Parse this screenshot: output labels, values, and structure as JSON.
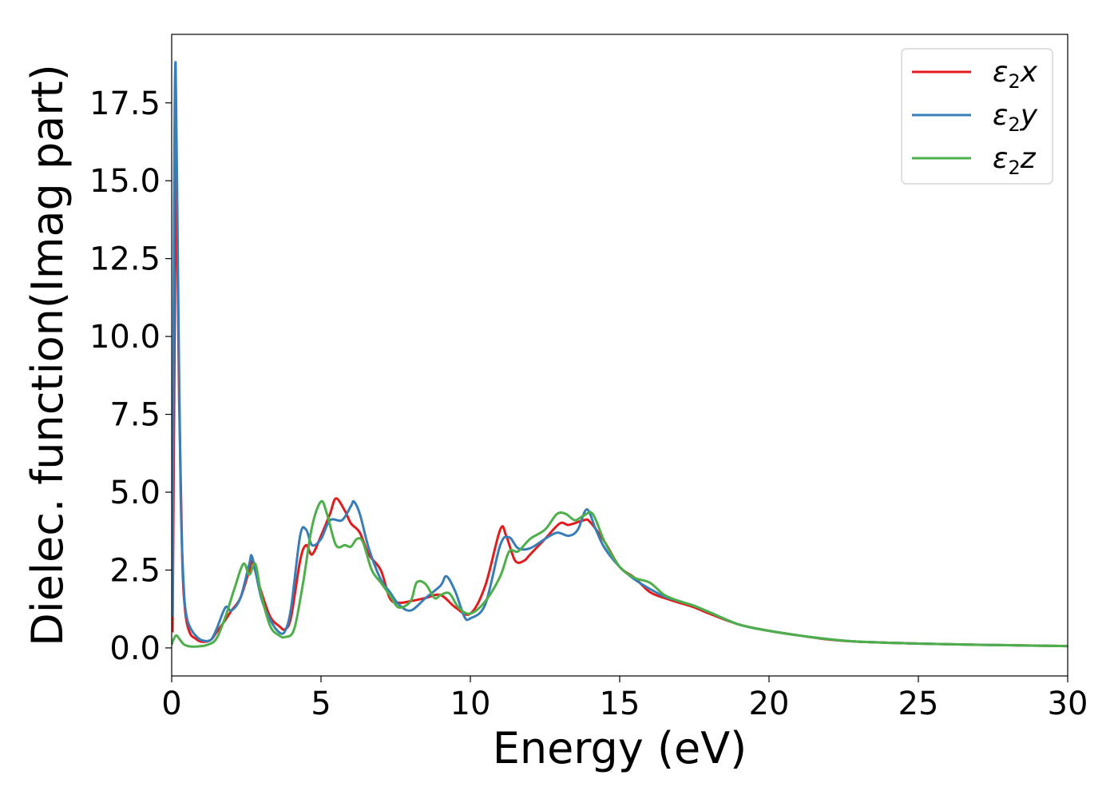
{
  "chart_data": {
    "type": "line",
    "xlabel": "Energy (eV)",
    "ylabel": "Dielec. function(Imag part)",
    "xlim": [
      0,
      30
    ],
    "ylim": [
      -0.9,
      19.7
    ],
    "xticks": [
      0,
      5,
      10,
      15,
      20,
      25,
      30
    ],
    "xtick_labels": [
      "0",
      "5",
      "10",
      "15",
      "20",
      "25",
      "30"
    ],
    "yticks": [
      0.0,
      2.5,
      5.0,
      7.5,
      10.0,
      12.5,
      15.0,
      17.5
    ],
    "ytick_labels": [
      "0.0",
      "2.5",
      "5.0",
      "7.5",
      "10.0",
      "12.5",
      "15.0",
      "17.5"
    ],
    "grid": false,
    "legend_position": "top-right",
    "series": [
      {
        "name": "ε₂x",
        "label_base": "ε",
        "label_sub": "2",
        "label_tail": "x",
        "color": "#e41a1c",
        "x": [
          0.03,
          0.1,
          0.15,
          0.25,
          0.35,
          0.45,
          0.6,
          0.8,
          1.0,
          1.3,
          1.5,
          1.8,
          2.0,
          2.3,
          2.6,
          2.7,
          3.0,
          3.3,
          3.6,
          3.8,
          4.0,
          4.3,
          4.5,
          4.7,
          5.0,
          5.3,
          5.5,
          5.8,
          6.0,
          6.3,
          6.6,
          7.0,
          7.3,
          7.6,
          8.0,
          8.5,
          9.0,
          9.5,
          10.0,
          10.5,
          11.0,
          11.2,
          11.5,
          11.8,
          12.0,
          12.5,
          13.0,
          13.3,
          13.8,
          14.0,
          14.5,
          15.0,
          15.5,
          16.0,
          16.5,
          17.0,
          17.5,
          18.0,
          19.0,
          20.0,
          21.0,
          22.0,
          23.0,
          25.0,
          27.0,
          30.0
        ],
        "y": [
          0.5,
          10.0,
          15.6,
          8.0,
          3.0,
          1.2,
          0.5,
          0.3,
          0.2,
          0.25,
          0.5,
          0.9,
          1.2,
          1.6,
          2.5,
          2.75,
          1.8,
          1.0,
          0.7,
          0.6,
          1.0,
          2.8,
          3.3,
          3.0,
          3.6,
          4.3,
          4.8,
          4.4,
          4.0,
          3.7,
          3.0,
          2.5,
          1.6,
          1.45,
          1.5,
          1.6,
          1.7,
          1.3,
          1.1,
          2.0,
          3.8,
          3.6,
          2.8,
          2.8,
          3.0,
          3.5,
          4.0,
          3.95,
          4.1,
          4.05,
          3.4,
          2.6,
          2.25,
          1.8,
          1.6,
          1.45,
          1.3,
          1.1,
          0.75,
          0.55,
          0.4,
          0.27,
          0.2,
          0.14,
          0.1,
          0.06
        ]
      },
      {
        "name": "ε₂y",
        "label_base": "ε",
        "label_sub": "2",
        "label_tail": "y",
        "color": "#377eb8",
        "x": [
          0.03,
          0.08,
          0.13,
          0.2,
          0.3,
          0.4,
          0.5,
          0.65,
          0.8,
          1.0,
          1.3,
          1.5,
          1.8,
          2.0,
          2.3,
          2.6,
          2.7,
          3.0,
          3.3,
          3.6,
          3.8,
          4.0,
          4.3,
          4.5,
          4.7,
          5.0,
          5.3,
          5.7,
          6.0,
          6.1,
          6.3,
          6.6,
          7.0,
          7.3,
          7.6,
          8.0,
          8.5,
          9.0,
          9.2,
          9.5,
          9.8,
          10.0,
          10.5,
          11.0,
          11.3,
          11.6,
          12.0,
          12.5,
          12.9,
          13.3,
          13.6,
          13.9,
          14.2,
          14.5,
          15.0,
          15.5,
          16.0,
          16.5,
          17.0,
          17.5,
          18.0,
          19.0,
          20.0,
          21.0,
          22.0,
          23.0,
          25.0,
          27.0,
          30.0
        ],
        "y": [
          1.0,
          14.0,
          18.8,
          13.0,
          5.0,
          2.0,
          1.0,
          0.6,
          0.4,
          0.25,
          0.25,
          0.6,
          1.3,
          1.2,
          1.6,
          2.7,
          2.9,
          1.6,
          0.9,
          0.5,
          0.55,
          1.3,
          3.6,
          3.8,
          3.3,
          3.5,
          4.1,
          4.1,
          4.55,
          4.7,
          4.3,
          3.2,
          2.2,
          1.8,
          1.4,
          1.2,
          1.6,
          2.0,
          2.3,
          1.8,
          1.0,
          0.95,
          1.4,
          3.3,
          3.55,
          3.2,
          3.2,
          3.5,
          3.7,
          3.6,
          3.8,
          4.45,
          3.8,
          3.2,
          2.6,
          2.2,
          1.9,
          1.65,
          1.5,
          1.35,
          1.15,
          0.75,
          0.55,
          0.4,
          0.28,
          0.2,
          0.14,
          0.1,
          0.06
        ]
      },
      {
        "name": "ε₂z",
        "label_base": "ε",
        "label_sub": "2",
        "label_tail": "z",
        "color": "#4daf4a",
        "x": [
          0.0,
          0.05,
          0.15,
          0.25,
          0.4,
          0.6,
          0.9,
          1.2,
          1.5,
          1.8,
          2.1,
          2.4,
          2.6,
          2.8,
          3.0,
          3.3,
          3.6,
          3.8,
          4.1,
          4.4,
          4.7,
          5.0,
          5.2,
          5.5,
          5.8,
          6.0,
          6.2,
          6.4,
          6.7,
          7.0,
          7.3,
          7.6,
          8.0,
          8.2,
          8.5,
          8.8,
          9.0,
          9.3,
          9.6,
          10.0,
          10.5,
          11.0,
          11.3,
          11.6,
          12.0,
          12.5,
          12.9,
          13.2,
          13.5,
          13.8,
          14.1,
          14.5,
          15.0,
          15.5,
          16.0,
          16.5,
          17.0,
          17.5,
          18.0,
          19.0,
          20.0,
          21.0,
          22.0,
          23.0,
          25.0,
          27.0,
          30.0
        ],
        "y": [
          0.1,
          0.25,
          0.4,
          0.3,
          0.12,
          0.05,
          0.05,
          0.1,
          0.3,
          1.0,
          1.9,
          2.7,
          2.35,
          2.7,
          1.7,
          0.7,
          0.4,
          0.35,
          0.6,
          2.1,
          3.9,
          4.7,
          4.3,
          3.3,
          3.3,
          3.25,
          3.5,
          3.4,
          2.5,
          2.1,
          1.7,
          1.3,
          1.5,
          2.1,
          2.05,
          1.6,
          1.7,
          1.75,
          1.3,
          1.1,
          1.5,
          2.3,
          3.1,
          3.1,
          3.5,
          3.8,
          4.3,
          4.3,
          4.1,
          4.25,
          4.3,
          3.4,
          2.6,
          2.25,
          2.1,
          1.7,
          1.5,
          1.35,
          1.15,
          0.75,
          0.55,
          0.4,
          0.28,
          0.2,
          0.14,
          0.1,
          0.06
        ]
      }
    ]
  }
}
